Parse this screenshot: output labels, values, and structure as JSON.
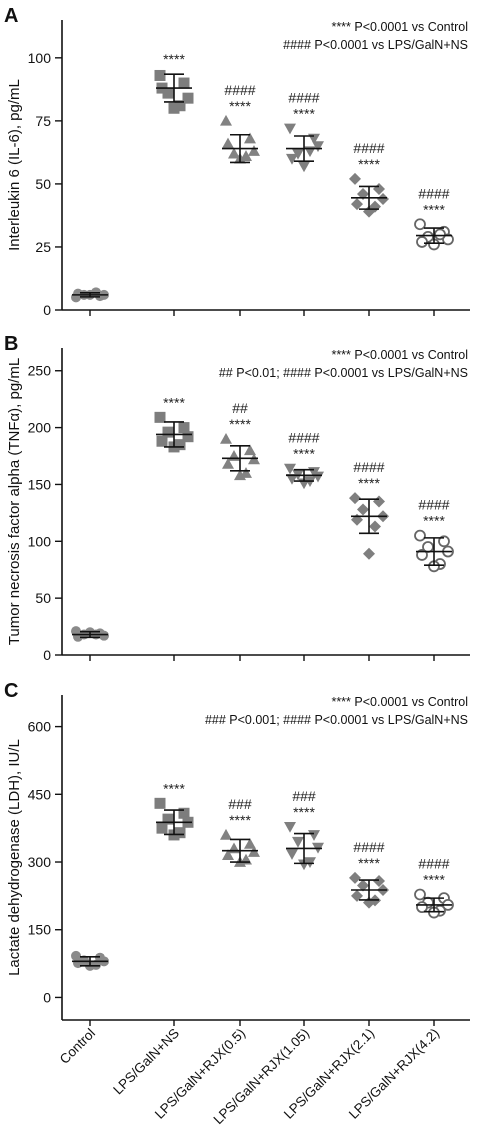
{
  "categories": [
    "Control",
    "LPS/GalN+NS",
    "LPS/GalN+RJX(0.5)",
    "LPS/GalN+RJX(1.05)",
    "LPS/GalN+RJX(2.1)",
    "LPS/GalN+RJX(4.2)"
  ],
  "colors": {
    "control": "#8a8a8a",
    "ns": "#7d7d7d",
    "rjx05": "#828282",
    "rjx105": "#7f7f7f",
    "rjx21": "#7f7f7f",
    "rjx42": "#666666",
    "axis": "#111111"
  },
  "chart_data": [
    {
      "type": "scatter",
      "panel": "A",
      "ylabel": "Interleukin 6 (IL-6), pg/mL",
      "ylim": [
        0,
        115
      ],
      "yticks": [
        0,
        25,
        50,
        75,
        100
      ],
      "legend": [
        "**** P<0.0001 vs Control",
        "#### P<0.0001 vs LPS/GalN+NS"
      ],
      "series": [
        {
          "category": "Control",
          "marker": "circle",
          "mean": 6,
          "sd": 0.8,
          "points": [
            5,
            5.5,
            6,
            6,
            6.5,
            7,
            6
          ]
        },
        {
          "category": "LPS/GalN+NS",
          "marker": "square",
          "mean": 88,
          "sd": 5.5,
          "points": [
            93,
            90,
            86,
            84,
            88,
            81,
            80
          ]
        },
        {
          "category": "LPS/GalN+RJX(0.5)",
          "marker": "triangle-up",
          "mean": 64,
          "sd": 5.5,
          "points": [
            75,
            68,
            62,
            63,
            66,
            61,
            60
          ]
        },
        {
          "category": "LPS/GalN+RJX(1.05)",
          "marker": "triangle-down",
          "mean": 64,
          "sd": 5,
          "points": [
            72,
            68,
            62,
            65,
            60,
            63,
            57
          ]
        },
        {
          "category": "LPS/GalN+RJX(2.1)",
          "marker": "diamond",
          "mean": 44.5,
          "sd": 4.5,
          "points": [
            52,
            48,
            46,
            44,
            42,
            41,
            39
          ]
        },
        {
          "category": "LPS/GalN+RJX(4.2)",
          "marker": "circle-open",
          "mean": 29.5,
          "sd": 3,
          "points": [
            34,
            31,
            29,
            28,
            27,
            30,
            26
          ]
        }
      ],
      "annotations": [
        {
          "category": "LPS/GalN+NS",
          "lines": [
            "****"
          ]
        },
        {
          "category": "LPS/GalN+RJX(0.5)",
          "lines": [
            "####",
            "****"
          ]
        },
        {
          "category": "LPS/GalN+RJX(1.05)",
          "lines": [
            "####",
            "****"
          ]
        },
        {
          "category": "LPS/GalN+RJX(2.1)",
          "lines": [
            "####",
            "****"
          ]
        },
        {
          "category": "LPS/GalN+RJX(4.2)",
          "lines": [
            "####",
            "****"
          ]
        }
      ]
    },
    {
      "type": "scatter",
      "panel": "B",
      "ylabel": "Tumor necrosis factor alpha (TNFα), pg/mL",
      "ylim": [
        0,
        270
      ],
      "yticks": [
        0,
        50,
        100,
        150,
        200,
        250
      ],
      "legend": [
        "**** P<0.0001 vs Control",
        "## P<0.01; #### P<0.0001 vs LPS/GalN+NS"
      ],
      "series": [
        {
          "category": "Control",
          "marker": "circle",
          "mean": 18,
          "sd": 2.5,
          "points": [
            21,
            19,
            18,
            17,
            16,
            18,
            20
          ]
        },
        {
          "category": "LPS/GalN+NS",
          "marker": "square",
          "mean": 194,
          "sd": 11,
          "points": [
            209,
            200,
            196,
            192,
            188,
            185,
            183
          ]
        },
        {
          "category": "LPS/GalN+RJX(0.5)",
          "marker": "triangle-up",
          "mean": 173,
          "sd": 11,
          "points": [
            190,
            180,
            175,
            172,
            168,
            160,
            158
          ]
        },
        {
          "category": "LPS/GalN+RJX(1.05)",
          "marker": "triangle-down",
          "mean": 158,
          "sd": 5,
          "points": [
            164,
            161,
            159,
            157,
            155,
            153,
            151
          ]
        },
        {
          "category": "LPS/GalN+RJX(2.1)",
          "marker": "diamond",
          "mean": 122,
          "sd": 15,
          "points": [
            138,
            135,
            128,
            122,
            119,
            113,
            89
          ]
        },
        {
          "category": "LPS/GalN+RJX(4.2)",
          "marker": "circle-open",
          "mean": 91,
          "sd": 12,
          "points": [
            105,
            100,
            95,
            91,
            88,
            80,
            78
          ]
        }
      ],
      "annotations": [
        {
          "category": "LPS/GalN+NS",
          "lines": [
            "****"
          ]
        },
        {
          "category": "LPS/GalN+RJX(0.5)",
          "lines": [
            "##",
            "****"
          ]
        },
        {
          "category": "LPS/GalN+RJX(1.05)",
          "lines": [
            "####",
            "****"
          ]
        },
        {
          "category": "LPS/GalN+RJX(2.1)",
          "lines": [
            "####",
            "****"
          ]
        },
        {
          "category": "LPS/GalN+RJX(4.2)",
          "lines": [
            "####",
            "****"
          ]
        }
      ]
    },
    {
      "type": "scatter",
      "panel": "C",
      "ylabel": "Lactate dehydrogenase (LDH), IU/L",
      "ylim": [
        -50,
        670
      ],
      "yticks": [
        0,
        150,
        300,
        450,
        600
      ],
      "legend": [
        "**** P<0.0001 vs Control",
        "### P<0.001; #### P<0.0001 vs LPS/GalN+NS"
      ],
      "series": [
        {
          "category": "Control",
          "marker": "circle",
          "mean": 80,
          "sd": 10,
          "points": [
            92,
            88,
            82,
            80,
            76,
            72,
            70
          ]
        },
        {
          "category": "LPS/GalN+NS",
          "marker": "square",
          "mean": 388,
          "sd": 27,
          "points": [
            430,
            408,
            395,
            388,
            375,
            365,
            360
          ]
        },
        {
          "category": "LPS/GalN+RJX(0.5)",
          "marker": "triangle-up",
          "mean": 325,
          "sd": 25,
          "points": [
            360,
            340,
            330,
            322,
            315,
            305,
            300
          ]
        },
        {
          "category": "LPS/GalN+RJX(1.05)",
          "marker": "triangle-down",
          "mean": 330,
          "sd": 33,
          "points": [
            378,
            360,
            345,
            332,
            318,
            300,
            295
          ]
        },
        {
          "category": "LPS/GalN+RJX(2.1)",
          "marker": "diamond",
          "mean": 238,
          "sd": 22,
          "points": [
            265,
            258,
            248,
            238,
            225,
            215,
            210
          ]
        },
        {
          "category": "LPS/GalN+RJX(4.2)",
          "marker": "circle-open",
          "mean": 205,
          "sd": 15,
          "points": [
            228,
            220,
            210,
            205,
            200,
            192,
            188
          ]
        }
      ],
      "annotations": [
        {
          "category": "LPS/GalN+NS",
          "lines": [
            "****"
          ]
        },
        {
          "category": "LPS/GalN+RJX(0.5)",
          "lines": [
            "###",
            "****"
          ]
        },
        {
          "category": "LPS/GalN+RJX(1.05)",
          "lines": [
            "###",
            "****"
          ]
        },
        {
          "category": "LPS/GalN+RJX(2.1)",
          "lines": [
            "####",
            "****"
          ]
        },
        {
          "category": "LPS/GalN+RJX(4.2)",
          "lines": [
            "####",
            "****"
          ]
        }
      ]
    }
  ]
}
